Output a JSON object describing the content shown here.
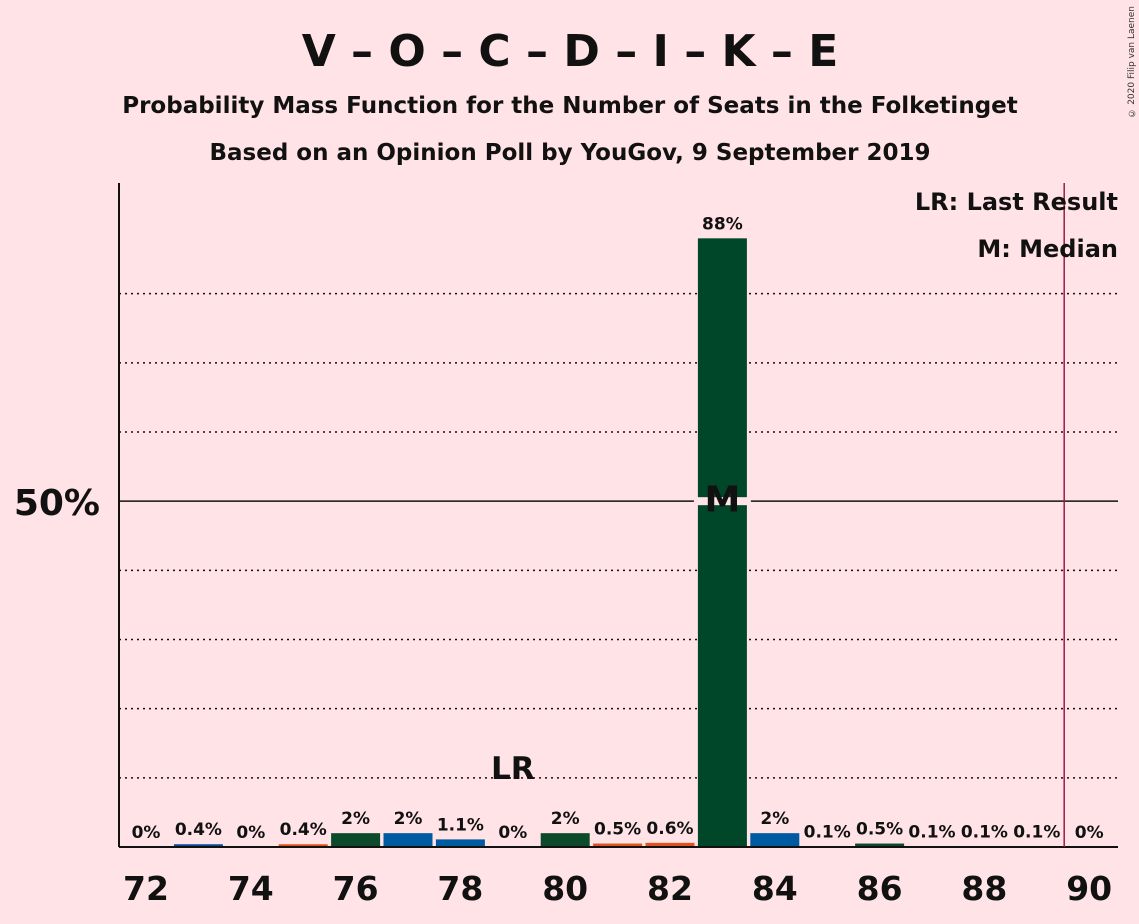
{
  "copyright": "© 2020 Filip van Laenen",
  "chart_data": {
    "type": "bar",
    "title": "V – O – C – D – I – K – E",
    "subtitle1": "Probability Mass Function for the Number of Seats in the Folketinget",
    "subtitle2": "Based on an Opinion Poll by YouGov, 9 September 2019",
    "x": [
      72,
      73,
      74,
      75,
      76,
      77,
      78,
      79,
      80,
      81,
      82,
      83,
      84,
      85,
      86,
      87,
      88,
      89,
      90
    ],
    "values": [
      0,
      0.4,
      0,
      0.4,
      2,
      2,
      1.1,
      0,
      2,
      0.5,
      0.6,
      88,
      2,
      0.1,
      0.5,
      0.1,
      0.1,
      0.1,
      0
    ],
    "value_labels": [
      "0%",
      "0.4%",
      "0%",
      "0.4%",
      "2%",
      "2%",
      "1.1%",
      "0%",
      "2%",
      "0.5%",
      "0.6%",
      "88%",
      "2%",
      "0.1%",
      "0.5%",
      "0.1%",
      "0.1%",
      "0.1%",
      "0%"
    ],
    "bar_colors": [
      "#0a4a9a",
      "#0a4a9a",
      "#0a4a9a",
      "#e0521f",
      "#0d4a2c",
      "#005aa0",
      "#005aa0",
      "#005aa0",
      "#0d4a2c",
      "#e0521f",
      "#e0521f",
      "#00472a",
      "#005aa0",
      "#005aa0",
      "#0d4a2c",
      "#005aa0",
      "#005aa0",
      "#005aa0",
      "#005aa0"
    ],
    "x_ticks": [
      "72",
      "74",
      "76",
      "78",
      "80",
      "82",
      "84",
      "86",
      "88",
      "90"
    ],
    "y_tick_label": "50%",
    "ylim": [
      0,
      96
    ],
    "gridlines": [
      10,
      20,
      30,
      40,
      60,
      70,
      80
    ],
    "majority_line": 50,
    "last_result_x": 79,
    "last_result_label": "LR",
    "median_x": 83,
    "median_label": "M",
    "threshold_x": 90,
    "threshold_color": "#9b1b4b",
    "legend": [
      "LR: Last Result",
      "M: Median"
    ]
  }
}
